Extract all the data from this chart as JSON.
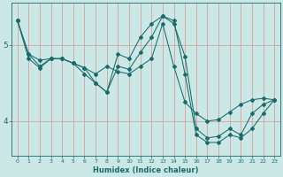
{
  "xlabel": "Humidex (Indice chaleur)",
  "background_color": "#cce8e6",
  "line_color": "#1a6b6b",
  "grid_color_v": "#d4a0a0",
  "grid_color_h": "#d4a0a0",
  "xlim": [
    -0.5,
    23.5
  ],
  "ylim": [
    3.55,
    5.55
  ],
  "yticks": [
    4,
    5
  ],
  "xticks": [
    0,
    1,
    2,
    3,
    4,
    5,
    6,
    7,
    8,
    9,
    10,
    11,
    12,
    13,
    14,
    15,
    16,
    17,
    18,
    19,
    20,
    21,
    22,
    23
  ],
  "series": [
    {
      "x": [
        0,
        1,
        2,
        3,
        4,
        5,
        6,
        7,
        8,
        9,
        10,
        11,
        12,
        13,
        14,
        15,
        16,
        17,
        18,
        19,
        20,
        21,
        22,
        23
      ],
      "y": [
        5.32,
        4.88,
        4.8,
        4.82,
        4.82,
        4.76,
        4.7,
        4.62,
        4.72,
        4.65,
        4.62,
        4.72,
        4.82,
        5.28,
        4.72,
        4.25,
        4.1,
        4.0,
        4.02,
        4.12,
        4.22,
        4.28,
        4.3,
        4.28
      ]
    },
    {
      "x": [
        0,
        1,
        2,
        3,
        4,
        5,
        6,
        7,
        8,
        9,
        10,
        11,
        12,
        13,
        14,
        15,
        16,
        17,
        18,
        19,
        20,
        21,
        22,
        23
      ],
      "y": [
        5.32,
        4.82,
        4.7,
        4.82,
        4.82,
        4.76,
        4.7,
        4.5,
        4.38,
        4.88,
        4.82,
        5.1,
        5.28,
        5.38,
        5.28,
        4.85,
        3.9,
        3.78,
        3.8,
        3.9,
        3.82,
        4.1,
        4.22,
        4.28
      ]
    },
    {
      "x": [
        0,
        1,
        2,
        3,
        4,
        5,
        6,
        7,
        8,
        9,
        10,
        11,
        12,
        13,
        14,
        15,
        16,
        17,
        18,
        19,
        20,
        21,
        22,
        23
      ],
      "y": [
        5.32,
        4.88,
        4.72,
        4.82,
        4.82,
        4.76,
        4.62,
        4.5,
        4.38,
        4.72,
        4.68,
        4.9,
        5.1,
        5.38,
        5.32,
        4.62,
        3.82,
        3.72,
        3.72,
        3.82,
        3.78,
        3.9,
        4.1,
        4.28
      ]
    }
  ]
}
